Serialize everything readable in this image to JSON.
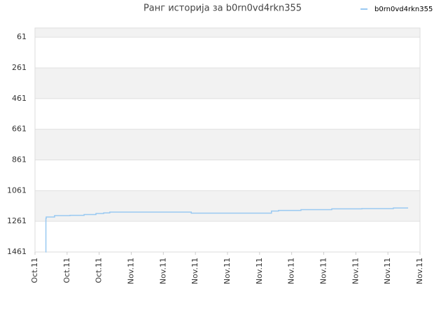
{
  "chart_data": {
    "type": "line",
    "title": "Ранг историја за b0rn0vd4rkn355",
    "step": true,
    "x": [
      0.33,
      0.34,
      0.35,
      0.61,
      1.09,
      1.53,
      1.9,
      2.14,
      2.33,
      4.87,
      7.37,
      7.59,
      8.29,
      9.25,
      10.19,
      11.17,
      11.63
    ],
    "series": [
      {
        "name": "b0rn0vd4rkn355",
        "color": "#99c9f2",
        "values": [
          1461,
          1242,
          1233,
          1224,
          1222,
          1217,
          1210,
          1206,
          1201,
          1208,
          1194,
          1190,
          1185,
          1180,
          1178,
          1174,
          1174
        ]
      }
    ],
    "ylim": [
      1461,
      1
    ],
    "yticks": [
      61,
      261,
      461,
      661,
      861,
      1061,
      1261,
      1461
    ],
    "xlim": [
      0,
      12
    ],
    "xticks": [
      {
        "value": 0,
        "label": "Oct.11"
      },
      {
        "value": 1,
        "label": "Oct.11"
      },
      {
        "value": 2,
        "label": "Oct.11"
      },
      {
        "value": 3,
        "label": "Nov.11"
      },
      {
        "value": 4,
        "label": "Nov.11"
      },
      {
        "value": 5,
        "label": "Nov.11"
      },
      {
        "value": 6,
        "label": "Nov.11"
      },
      {
        "value": 7,
        "label": "Nov.11"
      },
      {
        "value": 8,
        "label": "Nov.11"
      },
      {
        "value": 9,
        "label": "Nov.11"
      },
      {
        "value": 10,
        "label": "Nov.11"
      },
      {
        "value": 11,
        "label": "Nov.11"
      },
      {
        "value": 12,
        "label": "Nov.11"
      }
    ],
    "grid": true,
    "legend": "top-right"
  }
}
